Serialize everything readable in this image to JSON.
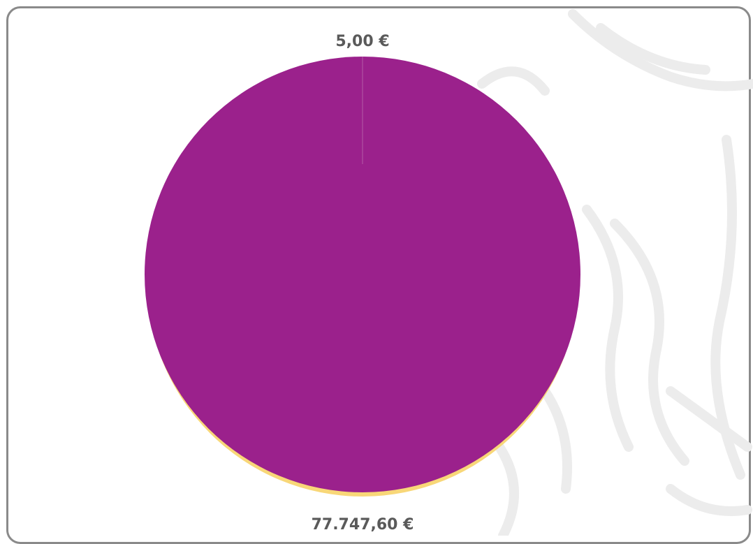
{
  "colors": {
    "slice_main": "#9b218c",
    "slice_small": "#f8d778",
    "label": "#5a5a5a",
    "frame": "#8a8a8a",
    "watermark": "#ececec"
  },
  "chart_data": {
    "type": "pie",
    "title": "",
    "slices": [
      {
        "value": 5.0,
        "label": "5,00 €",
        "color": "#f8d778"
      },
      {
        "value": 77747.6,
        "label": "77.747,60 €",
        "color": "#9b218c"
      }
    ],
    "legend": "none"
  }
}
